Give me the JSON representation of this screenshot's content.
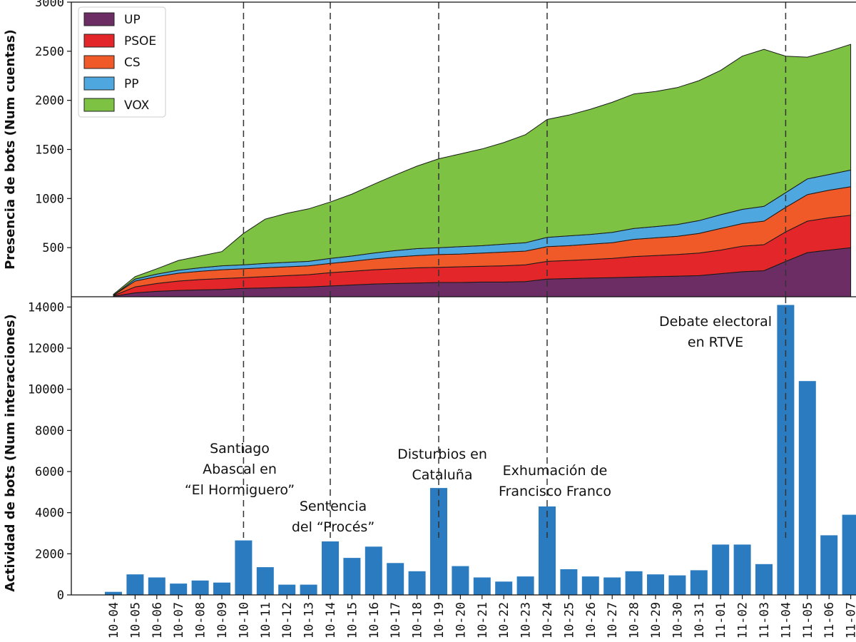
{
  "chart_data": [
    {
      "type": "area",
      "stacked": true,
      "ylabel": "Presencia de bots (Num cuentas)",
      "ylim": [
        0,
        3000
      ],
      "yticks": [
        "500",
        "1000",
        "1500",
        "2000",
        "2500",
        "3000"
      ],
      "grid": false,
      "legend_position": "top-left",
      "x": [
        "10-04",
        "10-05",
        "10-06",
        "10-07",
        "10-08",
        "10-09",
        "10-10",
        "10-11",
        "10-12",
        "10-13",
        "10-14",
        "10-15",
        "10-16",
        "10-17",
        "10-18",
        "10-19",
        "10-20",
        "10-21",
        "10-22",
        "10-23",
        "10-24",
        "10-25",
        "10-26",
        "10-27",
        "10-28",
        "10-29",
        "10-30",
        "10-31",
        "11-01",
        "11-02",
        "11-03",
        "11-04",
        "11-05",
        "11-06",
        "11-07"
      ],
      "series": [
        {
          "name": "UP",
          "color": "#6b2d63",
          "values": [
            5,
            40,
            55,
            65,
            70,
            75,
            85,
            90,
            95,
            100,
            110,
            120,
            130,
            135,
            140,
            145,
            145,
            150,
            150,
            155,
            180,
            185,
            190,
            195,
            200,
            205,
            210,
            215,
            235,
            255,
            265,
            360,
            450,
            475,
            500
          ]
        },
        {
          "name": "PSOE",
          "color": "#e3262a",
          "values": [
            5,
            60,
            80,
            95,
            105,
            110,
            110,
            115,
            120,
            125,
            135,
            140,
            145,
            150,
            155,
            155,
            160,
            160,
            165,
            170,
            180,
            185,
            190,
            195,
            210,
            215,
            220,
            230,
            240,
            260,
            265,
            300,
            320,
            330,
            330
          ]
        },
        {
          "name": "CS",
          "color": "#f05a28",
          "values": [
            5,
            60,
            70,
            80,
            85,
            90,
            90,
            90,
            90,
            90,
            95,
            100,
            110,
            120,
            125,
            130,
            130,
            135,
            140,
            140,
            150,
            150,
            155,
            160,
            175,
            180,
            185,
            200,
            220,
            230,
            240,
            250,
            270,
            280,
            290
          ]
        },
        {
          "name": "PP",
          "color": "#4ea8df",
          "values": [
            0,
            20,
            25,
            30,
            35,
            40,
            40,
            45,
            45,
            45,
            50,
            55,
            60,
            65,
            70,
            70,
            75,
            75,
            80,
            85,
            95,
            100,
            100,
            105,
            110,
            115,
            120,
            130,
            140,
            145,
            150,
            150,
            160,
            160,
            170
          ]
        },
        {
          "name": "VOX",
          "color": "#7dc242",
          "values": [
            10,
            25,
            55,
            100,
            120,
            145,
            320,
            450,
            500,
            535,
            575,
            630,
            700,
            770,
            840,
            905,
            945,
            985,
            1035,
            1100,
            1200,
            1230,
            1275,
            1325,
            1370,
            1375,
            1395,
            1425,
            1470,
            1560,
            1600,
            1390,
            1240,
            1255,
            1280
          ]
        }
      ],
      "vlines": [
        "10-10",
        "10-14",
        "10-19",
        "10-24",
        "11-04"
      ]
    },
    {
      "type": "bar",
      "ylabel": "Actividad de bots (Num interacciones)",
      "ylim": [
        0,
        14500
      ],
      "yticks": [
        "0",
        "2000",
        "4000",
        "6000",
        "8000",
        "10000",
        "12000",
        "14000"
      ],
      "color": "#2b7bc1",
      "categories": [
        "10-04",
        "10-05",
        "10-06",
        "10-07",
        "10-08",
        "10-09",
        "10-10",
        "10-11",
        "10-12",
        "10-13",
        "10-14",
        "10-15",
        "10-16",
        "10-17",
        "10-18",
        "10-19",
        "10-20",
        "10-21",
        "10-22",
        "10-23",
        "10-24",
        "10-25",
        "10-26",
        "10-27",
        "10-28",
        "10-29",
        "10-30",
        "10-31",
        "11-01",
        "11-02",
        "11-03",
        "11-04",
        "11-05",
        "11-06",
        "11-07"
      ],
      "values": [
        150,
        1000,
        850,
        550,
        700,
        600,
        2650,
        1350,
        500,
        500,
        2600,
        1800,
        2350,
        1550,
        1150,
        5200,
        1400,
        850,
        650,
        900,
        4300,
        1250,
        900,
        850,
        1150,
        1000,
        950,
        1200,
        2450,
        2450,
        1500,
        14100,
        10400,
        2900,
        3900
      ],
      "annotations": [
        {
          "lines": [
            "Santiago",
            "Abascal en",
            "“El Hormiguero”"
          ]
        },
        {
          "lines": [
            "Sentencia",
            "del “Procés”"
          ]
        },
        {
          "lines": [
            "Disturbios en",
            "Cataluña"
          ]
        },
        {
          "lines": [
            "Exhumación de",
            "Francisco Franco"
          ]
        },
        {
          "lines": [
            "Debate electoral",
            "en RTVE"
          ]
        }
      ]
    }
  ]
}
